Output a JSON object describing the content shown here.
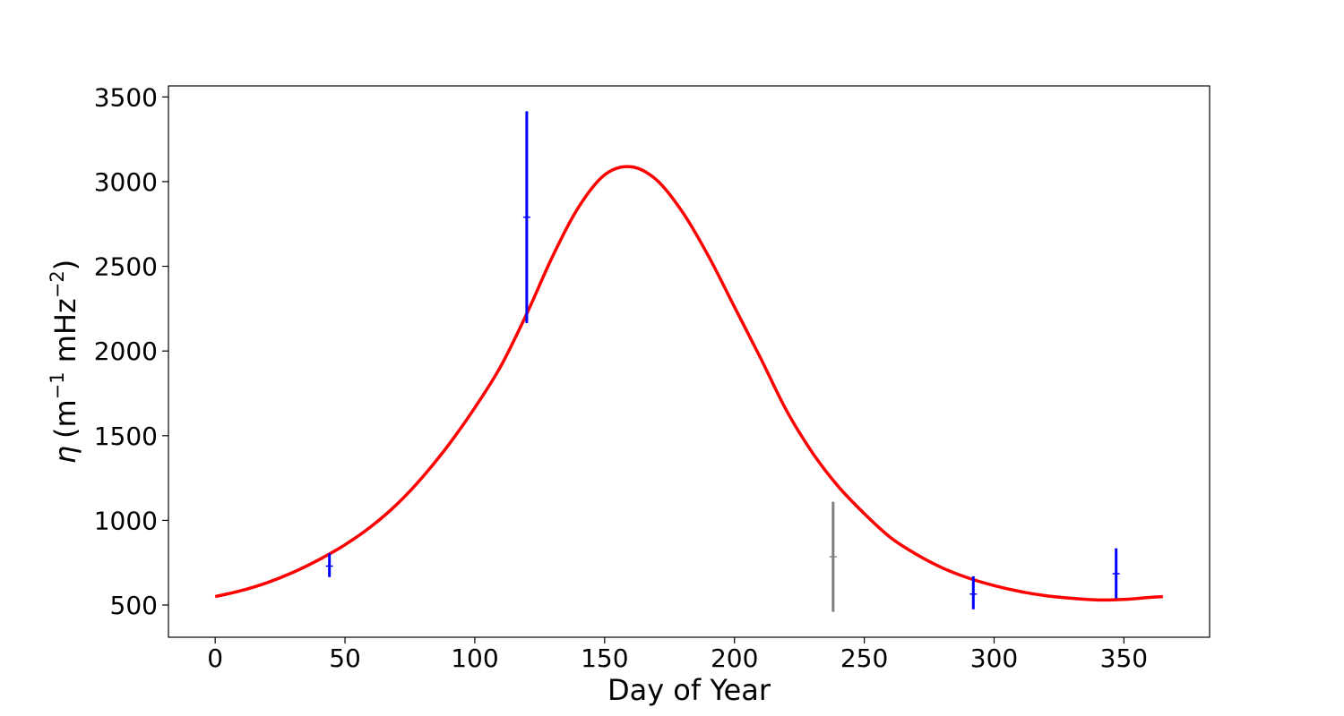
{
  "chart_data": {
    "type": "line",
    "title": "",
    "xlabel": "Day of Year",
    "ylabel_symbol": "η",
    "ylabel_units": {
      "open": "(m",
      "exp1": "−1",
      "mid": " mHz",
      "exp2": "−2",
      "close": ")"
    },
    "xlim": [
      -18,
      383
    ],
    "ylim": [
      310,
      3565
    ],
    "xticks": [
      0,
      50,
      100,
      150,
      200,
      250,
      300,
      350
    ],
    "xtick_labels": [
      "0",
      "50",
      "100",
      "150",
      "200",
      "250",
      "300",
      "350"
    ],
    "yticks": [
      500,
      1000,
      1500,
      2000,
      2500,
      3000,
      3500
    ],
    "ytick_labels": [
      "500",
      "1000",
      "1500",
      "2000",
      "2500",
      "3000",
      "3500"
    ],
    "grid": false,
    "fit_curve": {
      "color": "#ff0000",
      "x": [
        0,
        10,
        20,
        30,
        40,
        50,
        60,
        70,
        80,
        90,
        100,
        110,
        120,
        130,
        140,
        150,
        160,
        170,
        180,
        190,
        200,
        210,
        220,
        230,
        240,
        250,
        260,
        270,
        280,
        290,
        300,
        310,
        320,
        330,
        340,
        350,
        360,
        365
      ],
      "y": [
        550,
        585,
        632,
        693,
        768,
        856,
        963,
        1095,
        1258,
        1448,
        1665,
        1910,
        2220,
        2560,
        2850,
        3040,
        3088,
        3010,
        2820,
        2560,
        2260,
        1960,
        1650,
        1400,
        1200,
        1040,
        900,
        800,
        720,
        660,
        615,
        580,
        555,
        540,
        530,
        533,
        545,
        550
      ]
    },
    "error_bars": [
      {
        "x": 44,
        "y": 730,
        "low": 665,
        "high": 805,
        "color": "#0000ff"
      },
      {
        "x": 120,
        "y": 2790,
        "low": 2165,
        "high": 3415,
        "color": "#0000ff"
      },
      {
        "x": 238,
        "y": 785,
        "low": 460,
        "high": 1110,
        "color": "#808080"
      },
      {
        "x": 292,
        "y": 565,
        "low": 475,
        "high": 670,
        "color": "#0000ff"
      },
      {
        "x": 347,
        "y": 685,
        "low": 540,
        "high": 835,
        "color": "#0000ff"
      }
    ]
  }
}
